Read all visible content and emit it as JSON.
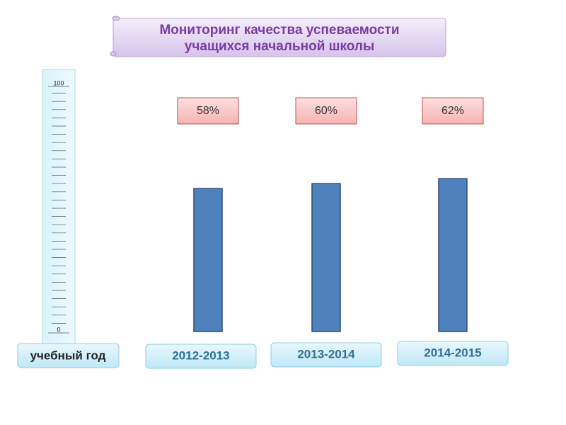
{
  "chart_data": {
    "type": "bar",
    "title": [
      "Мониторинг качества успеваемости",
      "учащихся начальной школы"
    ],
    "xlabel": "учебный год",
    "categories": [
      "2012-2013",
      "2013-2014",
      "2014-2015"
    ],
    "values": [
      58,
      60,
      62
    ],
    "value_labels": [
      "58%",
      "60%",
      "62%"
    ],
    "color": "#4f81bd",
    "ylim": [
      0,
      100
    ],
    "yticks": [
      0,
      100
    ]
  }
}
